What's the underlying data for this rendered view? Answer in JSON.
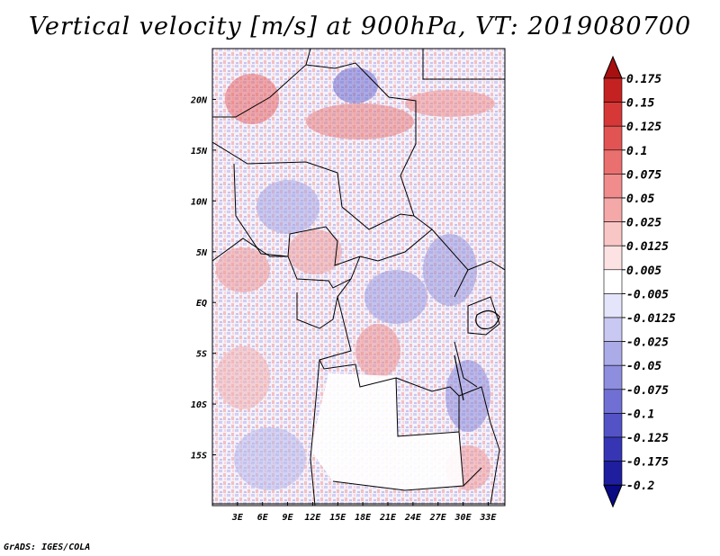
{
  "title": "Vertical velocity [m/s] at 900hPa, VT: 2019080700",
  "footer": "GrADS: IGES/COLA",
  "map": {
    "lon_range": [
      0,
      35
    ],
    "lat_range": [
      -20,
      25
    ],
    "lat_labels": [
      "20N",
      "15N",
      "10N",
      "5N",
      "EQ",
      "5S",
      "10S",
      "15S"
    ],
    "lon_labels": [
      "3E",
      "6E",
      "9E",
      "12E",
      "15E",
      "18E",
      "21E",
      "24E",
      "27E",
      "30E",
      "33E"
    ]
  },
  "colorbar": {
    "labels": [
      "0.175",
      "0.15",
      "0.125",
      "0.1",
      "0.075",
      "0.05",
      "0.025",
      "0.0125",
      "0.005",
      "-0.005",
      "-0.0125",
      "-0.025",
      "-0.05",
      "-0.075",
      "-0.1",
      "-0.125",
      "-0.175",
      "-0.2"
    ],
    "colors": [
      "#a81010",
      "#c42222",
      "#d63838",
      "#e25454",
      "#ea7070",
      "#f08c8c",
      "#f5a8a8",
      "#f9c6c6",
      "#fce2e2",
      "#ffffff",
      "#e4e4fa",
      "#c8c8f2",
      "#ababe8",
      "#8e8edf",
      "#7070d4",
      "#5353c6",
      "#3636b4",
      "#1e1e9e",
      "#0a0a84"
    ]
  }
}
